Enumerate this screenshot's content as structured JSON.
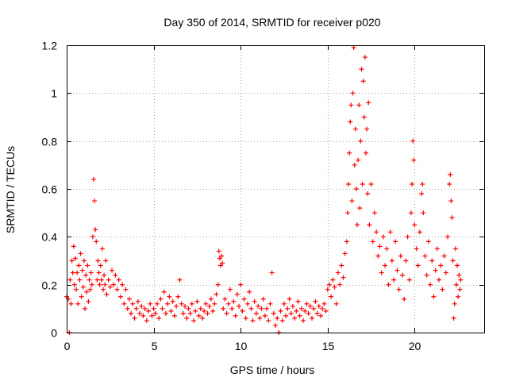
{
  "chart_data": {
    "type": "scatter",
    "title": "Day 350 of 2014, SRMTID for receiver p020",
    "xlabel": "GPS time / hours",
    "ylabel": "SRMTID / TECUs",
    "xlim": [
      0,
      24
    ],
    "ylim": [
      0,
      1.2
    ],
    "x_ticks": [
      0,
      5,
      10,
      15,
      20
    ],
    "y_ticks": [
      0,
      0.2,
      0.4,
      0.6,
      0.8,
      1,
      1.2
    ],
    "x_tick_labels": [
      "0",
      "5",
      "10",
      "15",
      "20"
    ],
    "y_tick_labels": [
      "0",
      "0.2",
      "0.4",
      "0.6",
      "0.8",
      "1",
      "1.2"
    ],
    "grid": true,
    "marker": "+",
    "series": [
      {
        "name": "p020",
        "color": "#ff0000",
        "points": [
          [
            0.0,
            0.15
          ],
          [
            0.1,
            0.14
          ],
          [
            0.15,
            0.0
          ],
          [
            0.2,
            0.22
          ],
          [
            0.25,
            0.12
          ],
          [
            0.3,
            0.3
          ],
          [
            0.35,
            0.25
          ],
          [
            0.4,
            0.36
          ],
          [
            0.45,
            0.2
          ],
          [
            0.5,
            0.31
          ],
          [
            0.55,
            0.18
          ],
          [
            0.6,
            0.25
          ],
          [
            0.65,
            0.12
          ],
          [
            0.7,
            0.28
          ],
          [
            0.75,
            0.22
          ],
          [
            0.8,
            0.33
          ],
          [
            0.85,
            0.15
          ],
          [
            0.9,
            0.26
          ],
          [
            0.95,
            0.19
          ],
          [
            1.0,
            0.3
          ],
          [
            1.05,
            0.1
          ],
          [
            1.1,
            0.24
          ],
          [
            1.15,
            0.17
          ],
          [
            1.2,
            0.28
          ],
          [
            1.25,
            0.13
          ],
          [
            1.3,
            0.22
          ],
          [
            1.35,
            0.18
          ],
          [
            1.4,
            0.25
          ],
          [
            1.45,
            0.2
          ],
          [
            1.5,
            0.4
          ],
          [
            1.55,
            0.64
          ],
          [
            1.6,
            0.55
          ],
          [
            1.65,
            0.43
          ],
          [
            1.7,
            0.38
          ],
          [
            1.75,
            0.22
          ],
          [
            1.8,
            0.3
          ],
          [
            1.85,
            0.25
          ],
          [
            1.9,
            0.2
          ],
          [
            1.95,
            0.28
          ],
          [
            2.0,
            0.22
          ],
          [
            2.05,
            0.35
          ],
          [
            2.1,
            0.18
          ],
          [
            2.15,
            0.24
          ],
          [
            2.2,
            0.2
          ],
          [
            2.25,
            0.3
          ],
          [
            2.3,
            0.16
          ],
          [
            2.4,
            0.22
          ],
          [
            2.5,
            0.19
          ],
          [
            2.6,
            0.26
          ],
          [
            2.7,
            0.2
          ],
          [
            2.8,
            0.24
          ],
          [
            2.9,
            0.18
          ],
          [
            3.0,
            0.22
          ],
          [
            3.1,
            0.15
          ],
          [
            3.2,
            0.2
          ],
          [
            3.3,
            0.12
          ],
          [
            3.4,
            0.18
          ],
          [
            3.5,
            0.1
          ],
          [
            3.6,
            0.14
          ],
          [
            3.7,
            0.08
          ],
          [
            3.8,
            0.12
          ],
          [
            3.9,
            0.06
          ],
          [
            4.0,
            0.1
          ],
          [
            4.1,
            0.13
          ],
          [
            4.2,
            0.08
          ],
          [
            4.3,
            0.11
          ],
          [
            4.4,
            0.07
          ],
          [
            4.5,
            0.1
          ],
          [
            4.6,
            0.05
          ],
          [
            4.7,
            0.09
          ],
          [
            4.8,
            0.12
          ],
          [
            4.9,
            0.07
          ],
          [
            5.0,
            0.1
          ],
          [
            5.1,
            0.08
          ],
          [
            5.2,
            0.12
          ],
          [
            5.3,
            0.06
          ],
          [
            5.4,
            0.14
          ],
          [
            5.5,
            0.1
          ],
          [
            5.6,
            0.17
          ],
          [
            5.7,
            0.08
          ],
          [
            5.8,
            0.12
          ],
          [
            5.9,
            0.15
          ],
          [
            6.0,
            0.09
          ],
          [
            6.1,
            0.13
          ],
          [
            6.2,
            0.07
          ],
          [
            6.3,
            0.11
          ],
          [
            6.4,
            0.15
          ],
          [
            6.5,
            0.22
          ],
          [
            6.6,
            0.12
          ],
          [
            6.7,
            0.08
          ],
          [
            6.8,
            0.11
          ],
          [
            6.9,
            0.06
          ],
          [
            7.0,
            0.1
          ],
          [
            7.1,
            0.08
          ],
          [
            7.2,
            0.12
          ],
          [
            7.3,
            0.05
          ],
          [
            7.4,
            0.09
          ],
          [
            7.5,
            0.13
          ],
          [
            7.6,
            0.07
          ],
          [
            7.7,
            0.1
          ],
          [
            7.8,
            0.06
          ],
          [
            7.9,
            0.09
          ],
          [
            8.0,
            0.12
          ],
          [
            8.1,
            0.08
          ],
          [
            8.2,
            0.11
          ],
          [
            8.3,
            0.14
          ],
          [
            8.4,
            0.09
          ],
          [
            8.5,
            0.12
          ],
          [
            8.6,
            0.16
          ],
          [
            8.7,
            0.2
          ],
          [
            8.75,
            0.34
          ],
          [
            8.8,
            0.31
          ],
          [
            8.85,
            0.28
          ],
          [
            8.9,
            0.32
          ],
          [
            8.95,
            0.29
          ],
          [
            9.0,
            0.1
          ],
          [
            9.1,
            0.14
          ],
          [
            9.2,
            0.08
          ],
          [
            9.3,
            0.12
          ],
          [
            9.4,
            0.18
          ],
          [
            9.5,
            0.1
          ],
          [
            9.6,
            0.13
          ],
          [
            9.7,
            0.07
          ],
          [
            9.8,
            0.16
          ],
          [
            9.9,
            0.11
          ],
          [
            10.0,
            0.2
          ],
          [
            10.1,
            0.09
          ],
          [
            10.2,
            0.14
          ],
          [
            10.3,
            0.06
          ],
          [
            10.4,
            0.12
          ],
          [
            10.5,
            0.17
          ],
          [
            10.6,
            0.1
          ],
          [
            10.7,
            0.05
          ],
          [
            10.8,
            0.13
          ],
          [
            10.9,
            0.08
          ],
          [
            11.0,
            0.11
          ],
          [
            11.1,
            0.06
          ],
          [
            11.2,
            0.1
          ],
          [
            11.3,
            0.14
          ],
          [
            11.4,
            0.07
          ],
          [
            11.5,
            0.1
          ],
          [
            11.6,
            0.05
          ],
          [
            11.7,
            0.12
          ],
          [
            11.8,
            0.25
          ],
          [
            11.9,
            0.08
          ],
          [
            12.0,
            0.03
          ],
          [
            12.1,
            0.06
          ],
          [
            12.2,
            0.0
          ],
          [
            12.3,
            0.09
          ],
          [
            12.4,
            0.05
          ],
          [
            12.5,
            0.12
          ],
          [
            12.6,
            0.07
          ],
          [
            12.7,
            0.1
          ],
          [
            12.8,
            0.14
          ],
          [
            12.9,
            0.08
          ],
          [
            13.0,
            0.11
          ],
          [
            13.1,
            0.06
          ],
          [
            13.2,
            0.09
          ],
          [
            13.3,
            0.13
          ],
          [
            13.4,
            0.07
          ],
          [
            13.5,
            0.1
          ],
          [
            13.6,
            0.05
          ],
          [
            13.7,
            0.09
          ],
          [
            13.8,
            0.12
          ],
          [
            13.9,
            0.08
          ],
          [
            14.0,
            0.11
          ],
          [
            14.1,
            0.06
          ],
          [
            14.2,
            0.1
          ],
          [
            14.3,
            0.13
          ],
          [
            14.4,
            0.08
          ],
          [
            14.5,
            0.11
          ],
          [
            14.6,
            0.07
          ],
          [
            14.7,
            0.1
          ],
          [
            14.8,
            0.12
          ],
          [
            14.9,
            0.09
          ],
          [
            15.0,
            0.18
          ],
          [
            15.1,
            0.2
          ],
          [
            15.2,
            0.15
          ],
          [
            15.3,
            0.22
          ],
          [
            15.4,
            0.19
          ],
          [
            15.5,
            0.12
          ],
          [
            15.6,
            0.25
          ],
          [
            15.7,
            0.2
          ],
          [
            15.8,
            0.28
          ],
          [
            15.9,
            0.23
          ],
          [
            16.0,
            0.33
          ],
          [
            16.1,
            0.38
          ],
          [
            16.15,
            0.5
          ],
          [
            16.2,
            0.62
          ],
          [
            16.25,
            0.75
          ],
          [
            16.3,
            0.88
          ],
          [
            16.35,
            0.95
          ],
          [
            16.4,
            0.55
          ],
          [
            16.45,
            1.0
          ],
          [
            16.5,
            1.19
          ],
          [
            16.55,
            0.7
          ],
          [
            16.6,
            0.85
          ],
          [
            16.65,
            0.6
          ],
          [
            16.7,
            0.45
          ],
          [
            16.75,
            0.72
          ],
          [
            16.8,
            0.95
          ],
          [
            16.85,
            0.52
          ],
          [
            16.9,
            0.8
          ],
          [
            16.95,
            1.1
          ],
          [
            17.0,
            0.62
          ],
          [
            17.05,
            1.05
          ],
          [
            17.1,
            0.9
          ],
          [
            17.15,
            1.15
          ],
          [
            17.2,
            0.75
          ],
          [
            17.25,
            0.85
          ],
          [
            17.3,
            0.58
          ],
          [
            17.35,
            0.96
          ],
          [
            17.4,
            0.45
          ],
          [
            17.5,
            0.62
          ],
          [
            17.6,
            0.38
          ],
          [
            17.7,
            0.5
          ],
          [
            17.8,
            0.42
          ],
          [
            17.9,
            0.32
          ],
          [
            18.0,
            0.36
          ],
          [
            18.1,
            0.25
          ],
          [
            18.2,
            0.4
          ],
          [
            18.3,
            0.28
          ],
          [
            18.4,
            0.35
          ],
          [
            18.5,
            0.2
          ],
          [
            18.6,
            0.42
          ],
          [
            18.7,
            0.3
          ],
          [
            18.8,
            0.22
          ],
          [
            18.9,
            0.38
          ],
          [
            19.0,
            0.26
          ],
          [
            19.1,
            0.18
          ],
          [
            19.2,
            0.32
          ],
          [
            19.3,
            0.24
          ],
          [
            19.4,
            0.14
          ],
          [
            19.5,
            0.3
          ],
          [
            19.6,
            0.4
          ],
          [
            19.7,
            0.22
          ],
          [
            19.8,
            0.5
          ],
          [
            19.85,
            0.62
          ],
          [
            19.9,
            0.8
          ],
          [
            19.95,
            0.72
          ],
          [
            20.0,
            0.45
          ],
          [
            20.1,
            0.35
          ],
          [
            20.2,
            0.28
          ],
          [
            20.3,
            0.42
          ],
          [
            20.4,
            0.58
          ],
          [
            20.45,
            0.62
          ],
          [
            20.5,
            0.5
          ],
          [
            20.6,
            0.32
          ],
          [
            20.7,
            0.24
          ],
          [
            20.8,
            0.38
          ],
          [
            20.9,
            0.2
          ],
          [
            21.0,
            0.3
          ],
          [
            21.1,
            0.15
          ],
          [
            21.2,
            0.26
          ],
          [
            21.3,
            0.35
          ],
          [
            21.4,
            0.22
          ],
          [
            21.5,
            0.28
          ],
          [
            21.6,
            0.18
          ],
          [
            21.7,
            0.32
          ],
          [
            21.8,
            0.25
          ],
          [
            21.9,
            0.4
          ],
          [
            22.0,
            0.62
          ],
          [
            22.05,
            0.66
          ],
          [
            22.1,
            0.55
          ],
          [
            22.15,
            0.48
          ],
          [
            22.2,
            0.3
          ],
          [
            22.25,
            0.06
          ],
          [
            22.3,
            0.12
          ],
          [
            22.35,
            0.35
          ],
          [
            22.4,
            0.2
          ],
          [
            22.45,
            0.28
          ],
          [
            22.5,
            0.15
          ],
          [
            22.55,
            0.24
          ],
          [
            22.6,
            0.18
          ],
          [
            22.65,
            0.22
          ]
        ]
      }
    ]
  }
}
